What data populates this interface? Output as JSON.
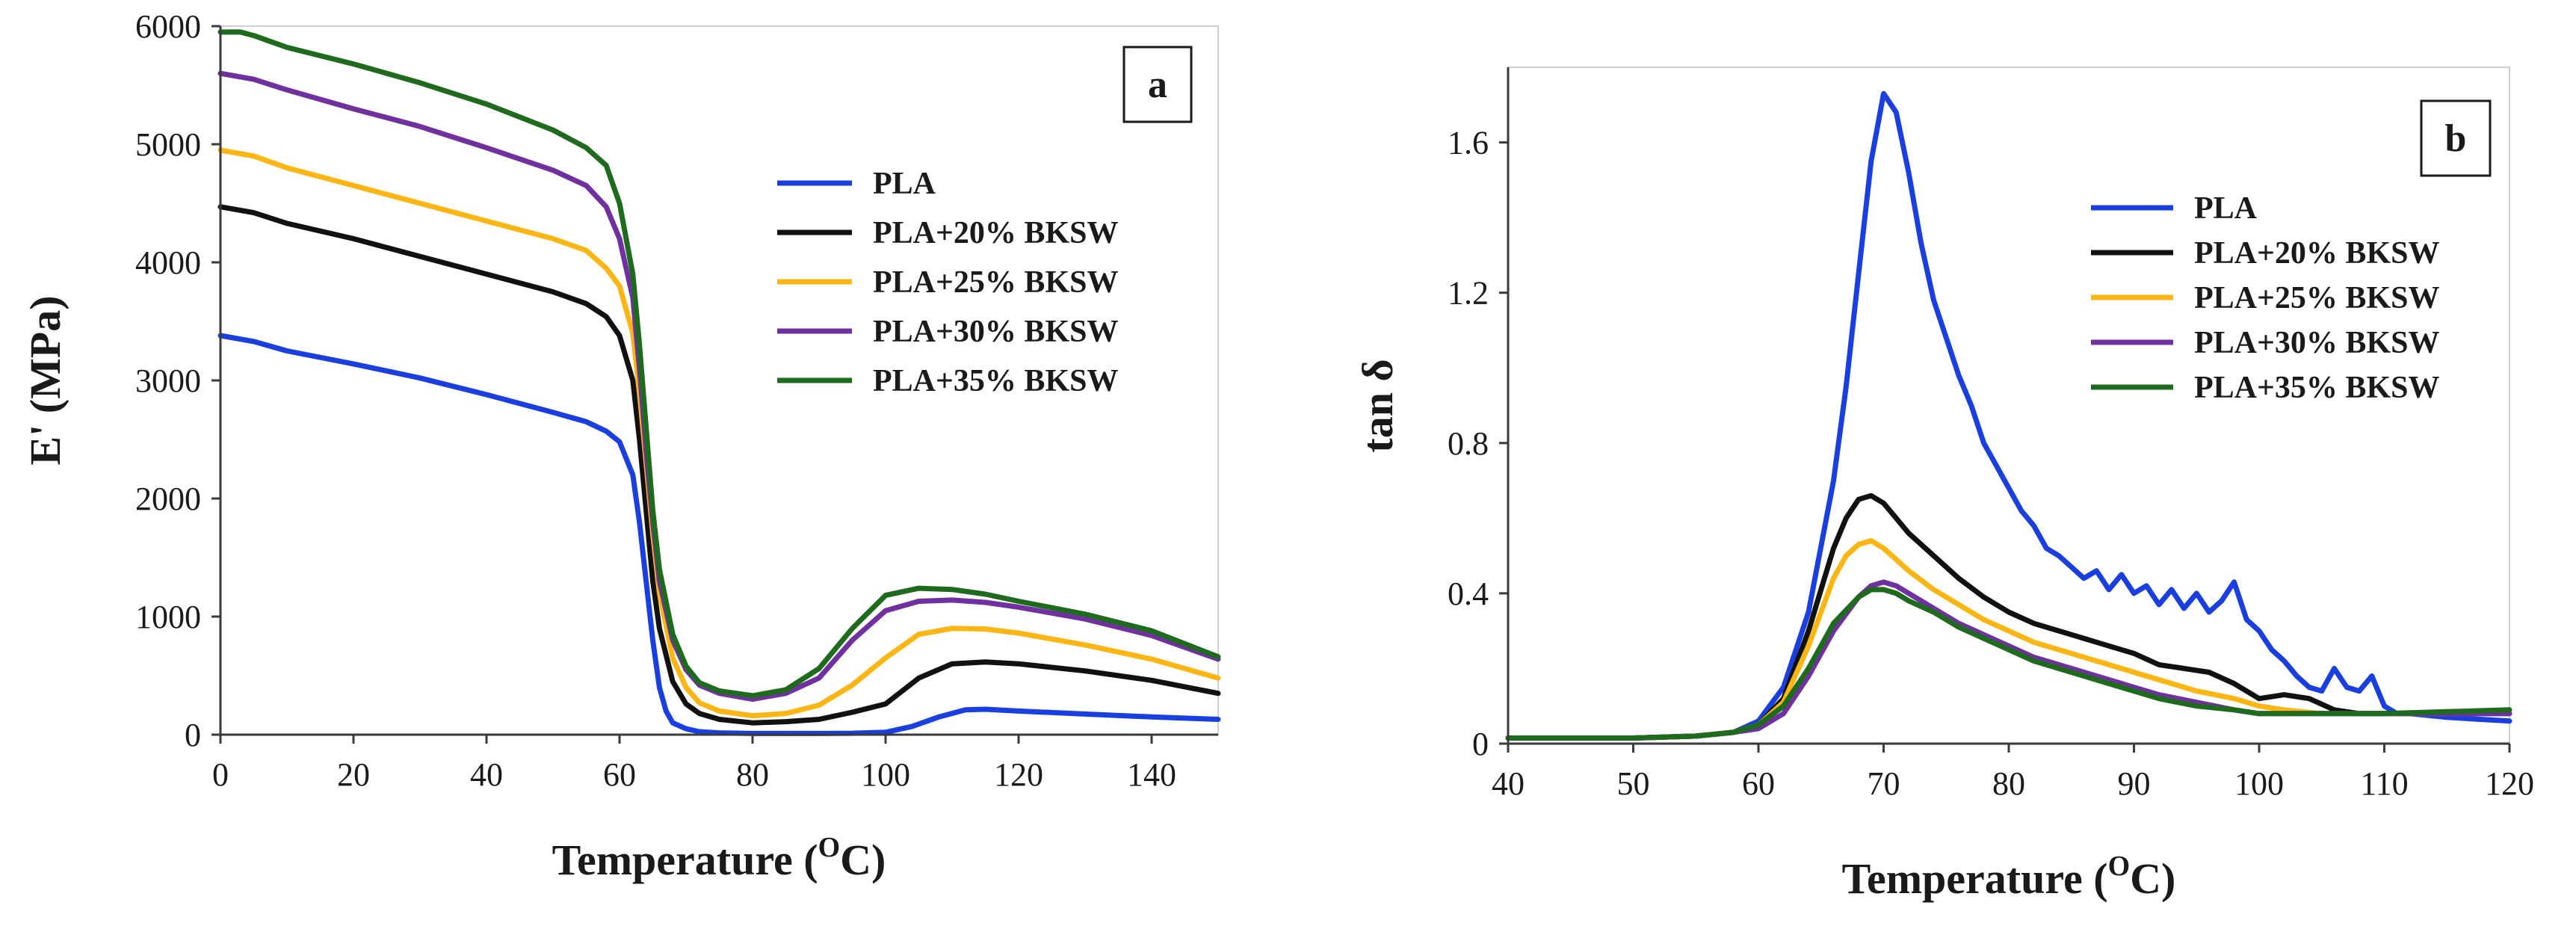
{
  "chart_data": [
    {
      "type": "line",
      "panel_label": "a",
      "title": "",
      "xlabel": "Temperature (",
      "xlabel_sup": "O",
      "xlabel_tail": "C)",
      "ylabel": "E' (MPa)",
      "xlim": [
        0,
        150
      ],
      "ylim": [
        0,
        6000
      ],
      "xticks": [
        "0",
        "20",
        "40",
        "60",
        "80",
        "100",
        "120",
        "140"
      ],
      "yticks": [
        "0",
        "1000",
        "2000",
        "3000",
        "4000",
        "5000",
        "6000"
      ],
      "grid": false,
      "legend_position": "center-right",
      "series": [
        {
          "name": "PLA",
          "color": "#1a3fe0",
          "x": [
            0,
            5,
            10,
            20,
            30,
            40,
            50,
            55,
            58,
            60,
            62,
            63,
            64,
            65,
            66,
            67,
            68,
            70,
            72,
            75,
            80,
            90,
            95,
            100,
            104,
            108,
            112,
            115,
            120,
            130,
            140,
            150
          ],
          "y": [
            3380,
            3330,
            3250,
            3140,
            3020,
            2880,
            2730,
            2650,
            2570,
            2480,
            2200,
            1800,
            1300,
            800,
            400,
            200,
            100,
            50,
            25,
            15,
            10,
            10,
            12,
            20,
            70,
            150,
            210,
            215,
            200,
            175,
            150,
            130
          ]
        },
        {
          "name": "PLA+20% BKSW",
          "color": "#111111",
          "x": [
            0,
            5,
            10,
            20,
            30,
            40,
            50,
            55,
            58,
            60,
            62,
            63,
            64,
            65,
            66,
            68,
            70,
            72,
            75,
            80,
            85,
            90,
            95,
            100,
            105,
            110,
            115,
            120,
            130,
            140,
            150
          ],
          "y": [
            4470,
            4420,
            4330,
            4200,
            4050,
            3900,
            3750,
            3650,
            3540,
            3380,
            3000,
            2500,
            1900,
            1300,
            900,
            450,
            260,
            180,
            130,
            100,
            110,
            130,
            190,
            260,
            480,
            600,
            615,
            600,
            540,
            460,
            350
          ]
        },
        {
          "name": "PLA+25% BKSW",
          "color": "#fbb614",
          "x": [
            0,
            5,
            10,
            20,
            30,
            40,
            50,
            55,
            58,
            60,
            62,
            63,
            64,
            65,
            66,
            68,
            70,
            72,
            75,
            80,
            85,
            90,
            95,
            100,
            105,
            110,
            115,
            120,
            130,
            140,
            150
          ],
          "y": [
            4950,
            4900,
            4800,
            4650,
            4500,
            4350,
            4200,
            4100,
            3950,
            3800,
            3400,
            2900,
            2300,
            1700,
            1200,
            650,
            400,
            270,
            200,
            160,
            180,
            250,
            420,
            650,
            850,
            900,
            895,
            860,
            760,
            640,
            480
          ]
        },
        {
          "name": "PLA+30% BKSW",
          "color": "#7030a0",
          "x": [
            0,
            5,
            10,
            20,
            30,
            40,
            50,
            55,
            58,
            60,
            62,
            63,
            64,
            65,
            66,
            68,
            70,
            72,
            75,
            80,
            85,
            90,
            95,
            100,
            105,
            110,
            115,
            120,
            130,
            140,
            150
          ],
          "y": [
            5600,
            5550,
            5460,
            5300,
            5150,
            4970,
            4780,
            4650,
            4470,
            4200,
            3700,
            3100,
            2400,
            1800,
            1300,
            800,
            550,
            420,
            350,
            300,
            350,
            480,
            800,
            1050,
            1130,
            1140,
            1120,
            1080,
            980,
            840,
            640
          ]
        },
        {
          "name": "PLA+35% BKSW",
          "color": "#1e6b1e",
          "x": [
            0,
            3,
            5,
            8,
            10,
            20,
            30,
            40,
            50,
            55,
            58,
            60,
            62,
            63,
            64,
            65,
            66,
            68,
            70,
            72,
            75,
            80,
            85,
            90,
            95,
            100,
            105,
            110,
            115,
            120,
            130,
            140,
            150
          ],
          "y": [
            5950,
            5950,
            5920,
            5860,
            5820,
            5680,
            5520,
            5340,
            5120,
            4970,
            4820,
            4500,
            3900,
            3300,
            2600,
            1900,
            1400,
            850,
            580,
            440,
            370,
            330,
            380,
            560,
            900,
            1180,
            1240,
            1230,
            1190,
            1130,
            1020,
            880,
            660
          ]
        }
      ]
    },
    {
      "type": "line",
      "panel_label": "b",
      "title": "",
      "xlabel": "Temperature (",
      "xlabel_sup": "O",
      "xlabel_tail": "C)",
      "ylabel": "tan δ",
      "xlim": [
        40,
        120
      ],
      "ylim": [
        0,
        1.8
      ],
      "xticks": [
        "40",
        "50",
        "60",
        "70",
        "80",
        "90",
        "100",
        "110",
        "120"
      ],
      "yticks": [
        "0",
        "0.4",
        "0.8",
        "1.2",
        "1.6"
      ],
      "ytick_values": [
        0,
        0.4,
        0.8,
        1.2,
        1.6
      ],
      "grid": false,
      "legend_position": "upper-right",
      "series": [
        {
          "name": "PLA",
          "color": "#1a3fe0",
          "x": [
            40,
            50,
            55,
            58,
            60,
            62,
            64,
            66,
            67,
            68,
            69,
            70,
            71,
            72,
            73,
            74,
            75,
            76,
            77,
            78,
            79,
            80,
            81,
            82,
            83,
            84,
            85,
            86,
            87,
            88,
            89,
            90,
            91,
            92,
            93,
            94,
            95,
            96,
            97,
            98,
            99,
            100,
            101,
            102,
            103,
            104,
            105,
            106,
            107,
            108,
            109,
            110,
            111,
            112,
            115,
            120
          ],
          "y": [
            0.015,
            0.015,
            0.02,
            0.03,
            0.06,
            0.15,
            0.35,
            0.7,
            0.95,
            1.25,
            1.55,
            1.73,
            1.68,
            1.52,
            1.33,
            1.18,
            1.08,
            0.98,
            0.9,
            0.8,
            0.74,
            0.68,
            0.62,
            0.58,
            0.52,
            0.5,
            0.47,
            0.44,
            0.46,
            0.41,
            0.45,
            0.4,
            0.42,
            0.37,
            0.41,
            0.36,
            0.4,
            0.35,
            0.38,
            0.43,
            0.33,
            0.3,
            0.25,
            0.22,
            0.18,
            0.15,
            0.14,
            0.2,
            0.15,
            0.14,
            0.18,
            0.1,
            0.08,
            0.08,
            0.07,
            0.06
          ]
        },
        {
          "name": "PLA+20% BKSW",
          "color": "#111111",
          "x": [
            40,
            50,
            55,
            58,
            60,
            62,
            64,
            66,
            67,
            68,
            69,
            70,
            71,
            72,
            74,
            76,
            78,
            80,
            82,
            85,
            88,
            90,
            92,
            94,
            96,
            98,
            100,
            102,
            104,
            106,
            108,
            110,
            115,
            120
          ],
          "y": [
            0.015,
            0.015,
            0.02,
            0.03,
            0.05,
            0.12,
            0.3,
            0.52,
            0.6,
            0.65,
            0.66,
            0.64,
            0.6,
            0.56,
            0.5,
            0.44,
            0.39,
            0.35,
            0.32,
            0.29,
            0.26,
            0.24,
            0.21,
            0.2,
            0.19,
            0.16,
            0.12,
            0.13,
            0.12,
            0.09,
            0.08,
            0.08,
            0.08,
            0.08
          ]
        },
        {
          "name": "PLA+25% BKSW",
          "color": "#fbb614",
          "x": [
            40,
            50,
            55,
            58,
            60,
            62,
            64,
            66,
            67,
            68,
            69,
            70,
            71,
            72,
            74,
            76,
            78,
            80,
            82,
            85,
            88,
            90,
            92,
            95,
            98,
            100,
            102,
            105,
            110,
            115,
            120
          ],
          "y": [
            0.015,
            0.015,
            0.02,
            0.03,
            0.05,
            0.11,
            0.26,
            0.44,
            0.5,
            0.53,
            0.54,
            0.52,
            0.49,
            0.46,
            0.41,
            0.37,
            0.33,
            0.3,
            0.27,
            0.24,
            0.21,
            0.19,
            0.17,
            0.14,
            0.12,
            0.1,
            0.09,
            0.08,
            0.08,
            0.08,
            0.08
          ]
        },
        {
          "name": "PLA+30% BKSW",
          "color": "#7030a0",
          "x": [
            40,
            50,
            55,
            58,
            60,
            62,
            64,
            66,
            68,
            69,
            70,
            71,
            72,
            74,
            76,
            78,
            80,
            82,
            85,
            88,
            90,
            92,
            95,
            98,
            100,
            105,
            110,
            115,
            120
          ],
          "y": [
            0.015,
            0.015,
            0.02,
            0.03,
            0.04,
            0.08,
            0.18,
            0.3,
            0.39,
            0.42,
            0.43,
            0.42,
            0.4,
            0.36,
            0.32,
            0.29,
            0.26,
            0.23,
            0.2,
            0.17,
            0.15,
            0.13,
            0.11,
            0.09,
            0.08,
            0.08,
            0.08,
            0.08,
            0.08
          ]
        },
        {
          "name": "PLA+35% BKSW",
          "color": "#1e6b1e",
          "x": [
            40,
            50,
            55,
            58,
            60,
            62,
            64,
            66,
            68,
            69,
            70,
            71,
            72,
            74,
            76,
            78,
            80,
            82,
            85,
            88,
            90,
            92,
            95,
            98,
            100,
            105,
            110,
            115,
            120
          ],
          "y": [
            0.015,
            0.015,
            0.02,
            0.03,
            0.05,
            0.1,
            0.2,
            0.32,
            0.39,
            0.41,
            0.41,
            0.4,
            0.38,
            0.35,
            0.31,
            0.28,
            0.25,
            0.22,
            0.19,
            0.16,
            0.14,
            0.12,
            0.1,
            0.09,
            0.08,
            0.08,
            0.08,
            0.085,
            0.09
          ]
        }
      ]
    }
  ]
}
